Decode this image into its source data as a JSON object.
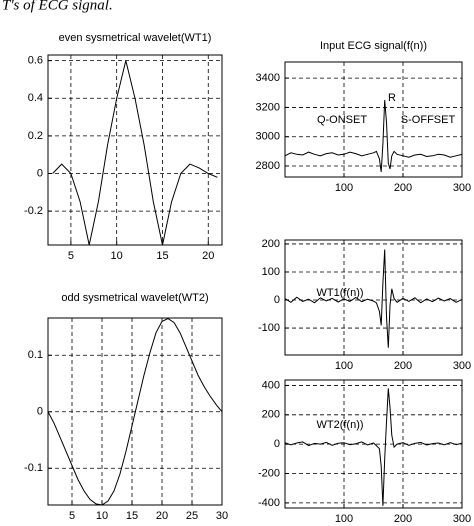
{
  "caption": "T's of ECG signal.",
  "chart_data": [
    {
      "type": "line",
      "title": "even sysmetrical wavelet(WT1)",
      "x": [
        3,
        4,
        5,
        6,
        7,
        8,
        9,
        10,
        11,
        12,
        13,
        14,
        15,
        16,
        17,
        18,
        19,
        20,
        21
      ],
      "values": [
        0,
        0.05,
        0,
        -0.15,
        -0.38,
        -0.15,
        0.15,
        0.4,
        0.6,
        0.4,
        0.15,
        -0.15,
        -0.38,
        -0.15,
        0,
        0.05,
        0.03,
        0,
        -0.02
      ],
      "xlim": [
        2.5,
        21.5
      ],
      "ylim": [
        -0.38,
        0.63
      ],
      "xticks": [
        5,
        10,
        15,
        20
      ],
      "yticks": [
        -0.2,
        0,
        0.2,
        0.4,
        0.6
      ],
      "grid": true,
      "color": "#000000"
    },
    {
      "type": "line",
      "title": "odd sysmetrical wavelet(WT2)",
      "x": [
        1,
        2,
        3,
        4,
        5,
        6,
        7,
        8,
        9,
        10,
        11,
        12,
        13,
        14,
        15,
        16,
        17,
        18,
        19,
        20,
        21,
        22,
        23,
        24,
        25,
        26,
        27,
        28,
        29,
        30
      ],
      "values": [
        0,
        -0.02,
        -0.045,
        -0.07,
        -0.095,
        -0.12,
        -0.14,
        -0.155,
        -0.163,
        -0.165,
        -0.158,
        -0.14,
        -0.11,
        -0.07,
        -0.025,
        0.02,
        0.065,
        0.105,
        0.14,
        0.16,
        0.165,
        0.158,
        0.14,
        0.115,
        0.09,
        0.065,
        0.045,
        0.028,
        0.013,
        0
      ],
      "xlim": [
        1,
        30
      ],
      "ylim": [
        -0.165,
        0.166
      ],
      "xticks": [
        5,
        10,
        15,
        20,
        25,
        30
      ],
      "yticks": [
        -0.1,
        0,
        0.1
      ],
      "grid": true,
      "color": "#000000"
    },
    {
      "type": "line",
      "title": "Input ECG signal(f(n))",
      "annotations": [
        "R",
        "Q-ONSET",
        "S-OFFSET"
      ],
      "x": [
        0,
        10,
        20,
        30,
        40,
        50,
        60,
        70,
        80,
        90,
        100,
        110,
        120,
        130,
        140,
        150,
        155,
        160,
        163,
        166,
        169,
        172,
        175,
        178,
        181,
        185,
        190,
        200,
        210,
        220,
        230,
        240,
        250,
        260,
        270,
        280,
        290,
        300
      ],
      "values": [
        2870,
        2890,
        2880,
        2875,
        2895,
        2880,
        2870,
        2885,
        2890,
        2875,
        2880,
        2895,
        2885,
        2870,
        2880,
        2890,
        2900,
        2850,
        2760,
        2950,
        3250,
        3100,
        2820,
        2780,
        2870,
        2900,
        2880,
        2870,
        2860,
        2875,
        2880,
        2865,
        2870,
        2880,
        2875,
        2860,
        2870,
        2880
      ],
      "xlim": [
        0,
        300
      ],
      "ylim": [
        2725,
        3510
      ],
      "xticks": [
        100,
        200,
        300
      ],
      "yticks": [
        2800,
        3000,
        3200,
        3400
      ],
      "grid": true,
      "color": "#000000"
    },
    {
      "type": "line",
      "annotations": [
        "WT1(f(n))"
      ],
      "x": [
        0,
        10,
        20,
        30,
        40,
        50,
        60,
        70,
        80,
        90,
        100,
        110,
        120,
        130,
        140,
        150,
        155,
        160,
        163,
        166,
        169,
        172,
        175,
        178,
        181,
        185,
        190,
        200,
        210,
        220,
        230,
        240,
        250,
        260,
        270,
        280,
        290,
        300
      ],
      "values": [
        5,
        -8,
        10,
        -5,
        3,
        -10,
        8,
        -3,
        6,
        -7,
        4,
        -5,
        9,
        -6,
        3,
        -4,
        -10,
        -40,
        -90,
        60,
        180,
        -60,
        -170,
        -20,
        40,
        5,
        -8,
        6,
        -5,
        8,
        -10,
        4,
        -6,
        7,
        -3,
        5,
        -8,
        2
      ],
      "xlim": [
        0,
        300
      ],
      "ylim": [
        -196,
        214
      ],
      "xticks": [
        100,
        200,
        300
      ],
      "yticks": [
        -100,
        0,
        100,
        200
      ],
      "grid": true,
      "color": "#000000"
    },
    {
      "type": "line",
      "annotations": [
        "WT2(f(n))"
      ],
      "x": [
        0,
        10,
        20,
        30,
        40,
        50,
        60,
        70,
        80,
        90,
        100,
        110,
        120,
        130,
        140,
        150,
        155,
        160,
        163,
        166,
        169,
        172,
        175,
        178,
        181,
        185,
        190,
        200,
        210,
        220,
        230,
        240,
        250,
        260,
        270,
        280,
        290,
        300
      ],
      "values": [
        10,
        -5,
        8,
        15,
        -10,
        5,
        0,
        12,
        -8,
        6,
        10,
        -4,
        3,
        15,
        -6,
        8,
        -10,
        -30,
        -150,
        -420,
        -100,
        150,
        380,
        250,
        60,
        -20,
        0,
        10,
        -8,
        5,
        12,
        -6,
        4,
        8,
        -5,
        10,
        -3,
        6
      ],
      "xlim": [
        0,
        300
      ],
      "ylim": [
        -435,
        437
      ],
      "xticks": [
        100,
        200,
        300
      ],
      "yticks": [
        -400,
        -200,
        0,
        200,
        400
      ],
      "grid": true,
      "color": "#000000"
    }
  ]
}
